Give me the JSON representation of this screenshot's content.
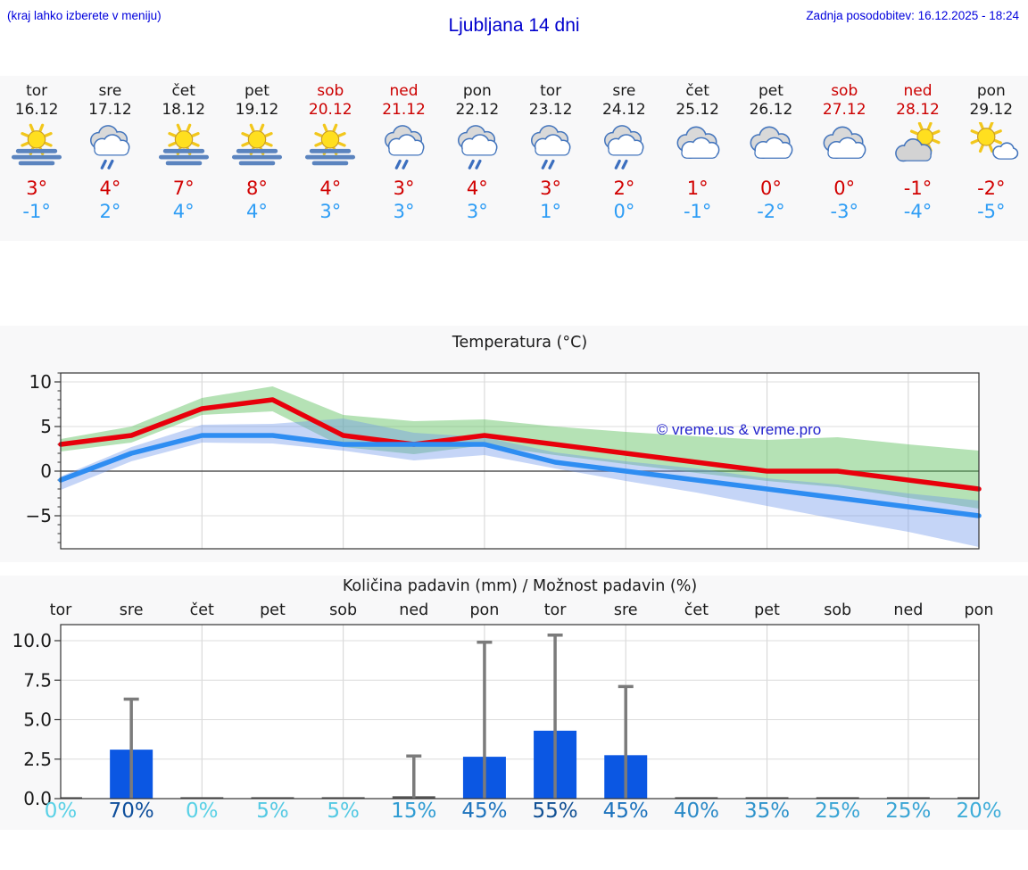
{
  "header": {
    "menu_hint": "(kraj lahko izberete v meniju)",
    "title": "Ljubljana 14 dni",
    "last_update": "Zadnja posodobitev: 16.12.2025 - 18:24"
  },
  "colors": {
    "link_blue": "#0000dd",
    "title_blue": "#0000cd",
    "weekend_red": "#cc0000",
    "tmax_red": "#d10000",
    "tmin_blue": "#2e9df5",
    "section_bg": "#f8f8f9",
    "watermark_blue": "#2222cc"
  },
  "days": [
    {
      "name": "tor",
      "date": "16.12",
      "icon": "sun-fog",
      "tmax": "3°",
      "tmin": "-1°",
      "weekend": false
    },
    {
      "name": "sre",
      "date": "17.12",
      "icon": "rain",
      "tmax": "4°",
      "tmin": "2°",
      "weekend": false
    },
    {
      "name": "čet",
      "date": "18.12",
      "icon": "sun-fog",
      "tmax": "7°",
      "tmin": "4°",
      "weekend": false
    },
    {
      "name": "pet",
      "date": "19.12",
      "icon": "sun-fog",
      "tmax": "8°",
      "tmin": "4°",
      "weekend": false
    },
    {
      "name": "sob",
      "date": "20.12",
      "icon": "sun-fog",
      "tmax": "4°",
      "tmin": "3°",
      "weekend": true
    },
    {
      "name": "ned",
      "date": "21.12",
      "icon": "rain",
      "tmax": "3°",
      "tmin": "3°",
      "weekend": true
    },
    {
      "name": "pon",
      "date": "22.12",
      "icon": "rain",
      "tmax": "4°",
      "tmin": "3°",
      "weekend": false
    },
    {
      "name": "tor",
      "date": "23.12",
      "icon": "rain",
      "tmax": "3°",
      "tmin": "1°",
      "weekend": false
    },
    {
      "name": "sre",
      "date": "24.12",
      "icon": "rain",
      "tmax": "2°",
      "tmin": "0°",
      "weekend": false
    },
    {
      "name": "čet",
      "date": "25.12",
      "icon": "cloudy",
      "tmax": "1°",
      "tmin": "-1°",
      "weekend": false
    },
    {
      "name": "pet",
      "date": "26.12",
      "icon": "cloudy",
      "tmax": "0°",
      "tmin": "-2°",
      "weekend": false
    },
    {
      "name": "sob",
      "date": "27.12",
      "icon": "cloudy",
      "tmax": "0°",
      "tmin": "-3°",
      "weekend": true
    },
    {
      "name": "ned",
      "date": "28.12",
      "icon": "sun-cloud",
      "tmax": "-1°",
      "tmin": "-4°",
      "weekend": true
    },
    {
      "name": "pon",
      "date": "29.12",
      "icon": "mostly-sunny",
      "tmax": "-2°",
      "tmin": "-5°",
      "weekend": false
    }
  ],
  "chart_data": [
    {
      "type": "line",
      "title": "Temperatura (°C)",
      "watermark": "© vreme.us & vreme.pro",
      "x_days": [
        "tor 16.12",
        "sre 17.12",
        "čet 18.12",
        "pet 19.12",
        "sob 20.12",
        "ned 21.12",
        "pon 22.12",
        "tor 23.12",
        "sre 24.12",
        "čet 25.12",
        "pet 26.12",
        "sob 27.12",
        "ned 28.12",
        "pon 29.12"
      ],
      "ylim": [
        -8.7,
        11.0
      ],
      "yticks": [
        10,
        5,
        0,
        -5
      ],
      "grid": true,
      "legend": "none",
      "series": [
        {
          "name": "max temperature",
          "color": "#e8000b",
          "band_color": "rgba(92,190,92,0.45)",
          "values": [
            3,
            4,
            7,
            8,
            4,
            3,
            4,
            3,
            2,
            1,
            0,
            0,
            -1,
            -2
          ],
          "band_hi": [
            3.6,
            5,
            8.2,
            9.5,
            6.3,
            5.6,
            5.8,
            5,
            4.4,
            3.9,
            3.5,
            3.8,
            3,
            2.3
          ],
          "band_lo": [
            2.2,
            3.2,
            6.3,
            6.7,
            2.7,
            1.9,
            2.9,
            1.8,
            0.8,
            -0.2,
            -1.1,
            -1.8,
            -3,
            -4.2
          ]
        },
        {
          "name": "min temperature",
          "color": "#2e8df2",
          "band_color": "rgba(110,150,235,0.4)",
          "values": [
            -1,
            2,
            4,
            4,
            3,
            3,
            3,
            1,
            0,
            -1,
            -2,
            -3,
            -4,
            -5
          ],
          "band_hi": [
            -0.6,
            2.7,
            5.2,
            5.3,
            5.9,
            4.3,
            3.8,
            2.1,
            1.1,
            0.3,
            -0.8,
            -1.5,
            -2.5,
            -3.3
          ],
          "band_lo": [
            -2.1,
            1.1,
            3.2,
            3.1,
            2.3,
            1.2,
            1.8,
            0.3,
            -1.1,
            -2.4,
            -3.9,
            -5.4,
            -6.8,
            -8.5
          ]
        }
      ]
    },
    {
      "type": "bar",
      "title": "Količina padavin (mm) / Možnost padavin (%)",
      "categories": [
        "tor",
        "sre",
        "čet",
        "pet",
        "sob",
        "ned",
        "pon",
        "tor",
        "sre",
        "čet",
        "pet",
        "sob",
        "ned",
        "pon"
      ],
      "values_mm": [
        0.05,
        3.1,
        0.05,
        0.07,
        0.07,
        0.15,
        2.65,
        4.3,
        2.75,
        0.05,
        0.05,
        0.07,
        0.07,
        0.05
      ],
      "whisker_max_mm": [
        0,
        6.3,
        0,
        0,
        0,
        2.7,
        9.9,
        10.35,
        7.1,
        0,
        0,
        0,
        0,
        0
      ],
      "prob_percent": [
        0,
        70,
        0,
        5,
        5,
        15,
        45,
        55,
        45,
        40,
        35,
        25,
        25,
        20
      ],
      "prob_labels": [
        "0%",
        "70%",
        "0%",
        "5%",
        "5%",
        "15%",
        "45%",
        "55%",
        "45%",
        "40%",
        "35%",
        "25%",
        "25%",
        "20%"
      ],
      "prob_colors": [
        "#59d1e6",
        "#0f4f9c",
        "#59d1e6",
        "#54c9e3",
        "#54c9e3",
        "#2f9cd3",
        "#1d73bd",
        "#115094",
        "#1d73bd",
        "#2b8ac7",
        "#2e93cb",
        "#3aa5d5",
        "#3aa5d5",
        "#3fadd9"
      ],
      "yticks": [
        0,
        2.5,
        5,
        7.5,
        10
      ],
      "ylim": [
        0,
        11
      ],
      "grid": true,
      "bar_color": "#0b57e3",
      "whisker_color": "#7b7b7b"
    }
  ]
}
